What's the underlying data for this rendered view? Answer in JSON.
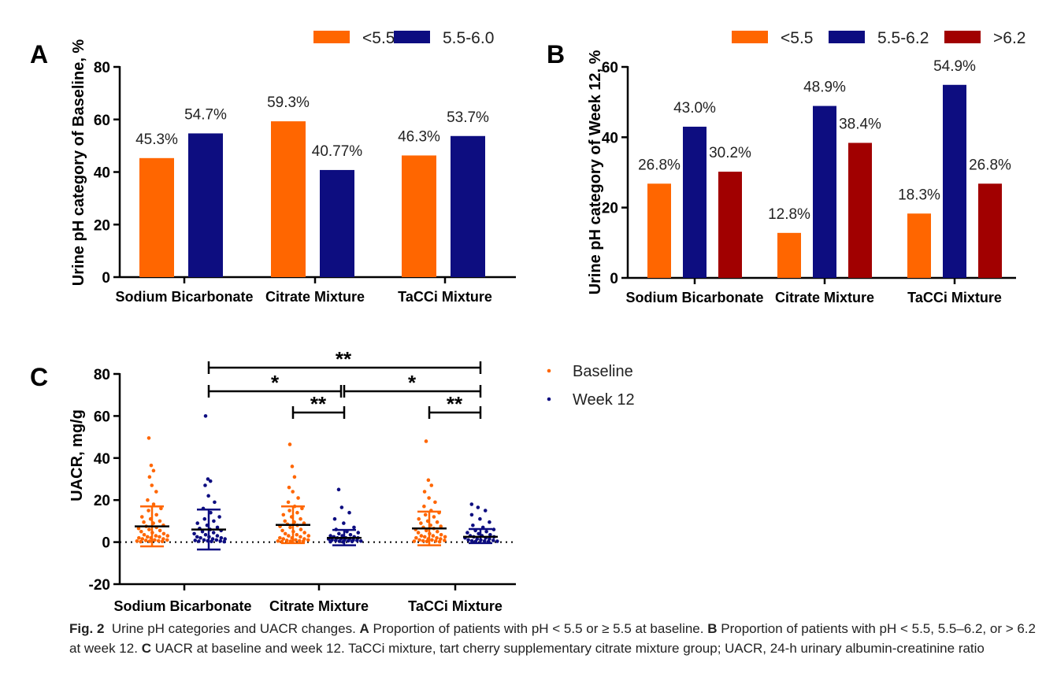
{
  "colors": {
    "orange": "#FF6600",
    "navy": "#0D0D80",
    "darkred": "#A10000",
    "black": "#000000"
  },
  "chart_data": [
    {
      "panel": "A",
      "type": "bar",
      "ylabel": "Urine pH category of Baseline, %",
      "ylim": [
        0,
        80
      ],
      "yticks": [
        0,
        20,
        40,
        60,
        80
      ],
      "categories": [
        "Sodium Bicarbonate",
        "Citrate Mixture",
        "TaCCi Mixture"
      ],
      "series": [
        {
          "name": "<5.5",
          "color": "#FF6600",
          "values": [
            45.3,
            59.3,
            46.3
          ],
          "labels": [
            "45.3%",
            "59.3%",
            "46.3%"
          ]
        },
        {
          "name": "5.5-6.0",
          "color": "#0D0D80",
          "values": [
            54.7,
            40.77,
            53.7
          ],
          "labels": [
            "54.7%",
            "40.77%",
            "53.7%"
          ]
        }
      ],
      "legend": "top"
    },
    {
      "panel": "B",
      "type": "bar",
      "ylabel": "Urine pH category of Week 12, %",
      "ylim": [
        0,
        60
      ],
      "yticks": [
        0,
        20,
        40,
        60
      ],
      "categories": [
        "Sodium Bicarbonate",
        "Citrate Mixture",
        "TaCCi Mixture"
      ],
      "series": [
        {
          "name": "<5.5",
          "color": "#FF6600",
          "values": [
            26.8,
            12.8,
            18.3
          ],
          "labels": [
            "26.8%",
            "12.8%",
            "18.3%"
          ]
        },
        {
          "name": "5.5-6.2",
          "color": "#0D0D80",
          "values": [
            43.0,
            48.9,
            54.9
          ],
          "labels": [
            "43.0%",
            "48.9%",
            "54.9%"
          ]
        },
        {
          "name": ">6.2",
          "color": "#A10000",
          "values": [
            30.2,
            38.4,
            26.8
          ],
          "labels": [
            "30.2%",
            "38.4%",
            "26.8%"
          ]
        }
      ],
      "legend": "top"
    },
    {
      "panel": "C",
      "type": "scatter",
      "ylabel": "UACR, mg/g",
      "ylim": [
        -20,
        80
      ],
      "yticks": [
        -20,
        0,
        20,
        40,
        60,
        80
      ],
      "categories": [
        "Sodium Bicarbonate",
        "Citrate Mixture",
        "TaCCi Mixture"
      ],
      "series": [
        {
          "name": "Baseline",
          "color": "#FF6600",
          "mean": [
            7.5,
            8.2,
            6.5
          ],
          "upper": [
            17.0,
            17.0,
            14.5
          ],
          "lower": [
            -2.0,
            -0.5,
            -1.5
          ],
          "points": [
            [
              49.5,
              36.5,
              34,
              31,
              27,
              24,
              20,
              18,
              16,
              15,
              13,
              12,
              11,
              10,
              9.5,
              9,
              8,
              7.5,
              7,
              6.5,
              6,
              5.5,
              5,
              4.5,
              4,
              3.5,
              3,
              3,
              2.5,
              2.5,
              2,
              2,
              1.5,
              1.5,
              1,
              1,
              0.8,
              0.6,
              0.5,
              0.4,
              0.3,
              0.2
            ],
            [
              46.5,
              36,
              31,
              26,
              24,
              21,
              19,
              17,
              16,
              15,
              14,
              13,
              12,
              11,
              10,
              9.5,
              9,
              8.5,
              8,
              7.5,
              7,
              6,
              5.5,
              5,
              4.5,
              4,
              3.5,
              3,
              3,
              2.5,
              2,
              2,
              1.5,
              1.5,
              1,
              1,
              0.8,
              0.6,
              0.5,
              0.4,
              0.3,
              0.2
            ],
            [
              48,
              29.5,
              27,
              24,
              21,
              19,
              17,
              15,
              14,
              13,
              12,
              11,
              10,
              9.5,
              9,
              8,
              7.5,
              7,
              6.5,
              6,
              5.5,
              5,
              4.5,
              4,
              3.5,
              3,
              3,
              2.5,
              2.5,
              2,
              2,
              1.5,
              1.5,
              1,
              1,
              0.8,
              0.6,
              0.5,
              0.4,
              0.3,
              0.2
            ]
          ]
        },
        {
          "name": "Week 12",
          "color": "#0D0D80",
          "mean": [
            6.0,
            2.0,
            2.5
          ],
          "upper": [
            15.5,
            5.8,
            6.2
          ],
          "lower": [
            -3.5,
            -1.5,
            -0.5
          ],
          "points": [
            [
              60,
              30,
              29,
              27,
              22,
              19,
              16,
              14,
              12,
              11,
              10,
              9,
              8,
              7,
              6.5,
              6,
              5.5,
              5,
              4.5,
              4,
              3.5,
              3,
              2.5,
              2.5,
              2,
              2,
              1.5,
              1.5,
              1,
              1,
              0.8,
              0.6,
              0.5,
              0.4,
              0.3,
              0.2
            ],
            [
              25,
              16.5,
              14,
              11,
              9,
              7,
              6,
              5,
              4.5,
              4,
              3.5,
              3,
              3,
              2.5,
              2.5,
              2,
              2,
              2,
              1.5,
              1.5,
              1.5,
              1,
              1,
              1,
              0.8,
              0.8,
              0.6,
              0.5,
              0.4,
              0.3,
              0.2,
              0.1
            ],
            [
              18,
              16.5,
              15,
              13,
              11,
              9.5,
              8,
              7,
              6,
              5.5,
              5,
              4.5,
              4,
              3.5,
              3,
              3,
              2.5,
              2.5,
              2,
              2,
              1.5,
              1.5,
              1,
              1,
              0.8,
              0.6,
              0.5,
              0.4,
              0.3,
              0.2
            ]
          ]
        }
      ],
      "reference_line": 0,
      "legend": "top-right",
      "significance": [
        {
          "label": "**"
        },
        {
          "label": "*"
        },
        {
          "label": "*"
        },
        {
          "label": "**"
        },
        {
          "label": "**"
        }
      ]
    }
  ],
  "panels": {
    "a": "A",
    "b": "B",
    "c": "C"
  },
  "caption": {
    "fig_label": "Fig. 2",
    "title": "Urine pH categories and UACR changes.",
    "a_label": "A",
    "a_text": "Proportion of patients with pH < 5.5 or ≥ 5.5 at baseline.",
    "b_label": "B",
    "b_text": "Proportion of patients with pH < 5.5, 5.5–6.2, or > 6.2 at week 12.",
    "c_label": "C",
    "c_text": "UACR at baseline and week 12. TaCCi mixture, tart cherry supplementary citrate mixture group; UACR, 24-h urinary albumin-creatinine ratio"
  }
}
